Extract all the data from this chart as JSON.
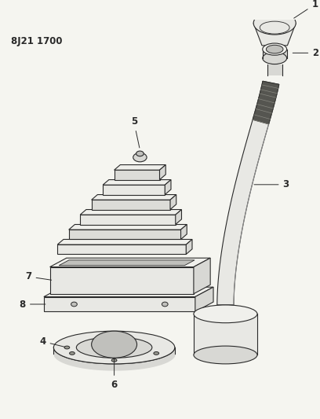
{
  "title": "8J21 1700",
  "bg_color": "#f5f5f0",
  "line_color": "#2a2a2a",
  "fill_light": "#e8e8e4",
  "fill_mid": "#d8d8d4",
  "fill_dark": "#c0c0bc",
  "fill_top": "#f0f0ec",
  "fig_width": 4.08,
  "fig_height": 5.33,
  "dpi": 100
}
